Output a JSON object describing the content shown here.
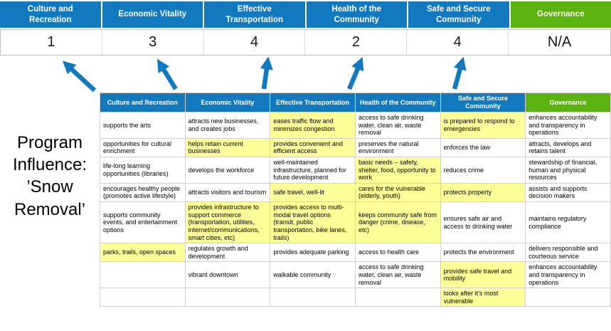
{
  "colors": {
    "blue": "#1379bf",
    "green": "#5cb20e",
    "highlight": "#ffff99",
    "score_text": "#161616"
  },
  "program_influence_label": "Program Influence: ’Snow Removal’",
  "pillars": [
    {
      "label": "Culture and Recreation",
      "score": "1",
      "color": "blue"
    },
    {
      "label": "Economic Vitality",
      "score": "3",
      "color": "blue"
    },
    {
      "label": "Effective Transportation",
      "score": "4",
      "color": "blue"
    },
    {
      "label": "Health of the Community",
      "score": "2",
      "color": "blue"
    },
    {
      "label": "Safe and Secure Community",
      "score": "4",
      "color": "blue"
    },
    {
      "label": "Governance",
      "score": "N/A",
      "color": "green"
    }
  ],
  "table": {
    "headers": [
      {
        "label": "Culture and Recreation",
        "color": "blue"
      },
      {
        "label": "Economic Vitality",
        "color": "blue"
      },
      {
        "label": "Effective Transportation",
        "color": "blue"
      },
      {
        "label": "Health of the Community",
        "color": "blue"
      },
      {
        "label": "Safe and Secure Community",
        "color": "blue"
      },
      {
        "label": "Governance",
        "color": "green"
      }
    ],
    "rows": [
      [
        {
          "text": "supports the arts",
          "hl": false
        },
        {
          "text": "attracts new businesses, and creates jobs",
          "hl": false
        },
        {
          "text": "eases traffic flow and minimizes congestion",
          "hl": true
        },
        {
          "text": "access to safe drinking water, clean air, waste removal",
          "hl": false
        },
        {
          "text": "is prepared to respond to emergencies",
          "hl": true
        },
        {
          "text": "enhances accountability and transparency in operations",
          "hl": false
        }
      ],
      [
        {
          "text": "opportunities for cultural enrichment",
          "hl": false
        },
        {
          "text": "helps retain current businesses",
          "hl": true
        },
        {
          "text": "provides convenient and efficient access",
          "hl": true
        },
        {
          "text": "preserves the natural environment",
          "hl": false
        },
        {
          "text": "enforces the law",
          "hl": false
        },
        {
          "text": "attracts, develops and retains talent",
          "hl": false
        }
      ],
      [
        {
          "text": "life-long learning opportunities (libraries)",
          "hl": false
        },
        {
          "text": "develops the workforce",
          "hl": false
        },
        {
          "text": "well-maintained infrastructure, planned for future development",
          "hl": false
        },
        {
          "text": "basic needs – safety, shelter, food, opportunity to work",
          "hl": true
        },
        {
          "text": "reduces crime",
          "hl": false
        },
        {
          "text": "stewardship of financial, human and physical resources",
          "hl": false
        }
      ],
      [
        {
          "text": "encourages healthy people (promotes active lifestyle)",
          "hl": false
        },
        {
          "text": "attracts visitors and tourism",
          "hl": false
        },
        {
          "text": "safe travel, well-lit",
          "hl": true
        },
        {
          "text": "cares for the vulnerable (elderly, youth)",
          "hl": true
        },
        {
          "text": "protects property",
          "hl": true
        },
        {
          "text": "assists and supports decision makers",
          "hl": false
        }
      ],
      [
        {
          "text": "supports community events, and entertainment options",
          "hl": false
        },
        {
          "text": "provides infrastructure to support commerce (transportation, utilities, internet/communications, smart cities, etc)",
          "hl": true
        },
        {
          "text": "provides access to multi-modal travel options (transit, public transportation, bike lanes, trails)",
          "hl": true
        },
        {
          "text": "keeps community safe from danger (crime, disease, etc)",
          "hl": true
        },
        {
          "text": "ensures safe air and access to drinking water",
          "hl": false
        },
        {
          "text": "maintains regulatory compliance",
          "hl": false
        }
      ],
      [
        {
          "text": "parks, trails, open spaces",
          "hl": true
        },
        {
          "text": "regulates growth and development",
          "hl": false
        },
        {
          "text": "provides adequate parking",
          "hl": false
        },
        {
          "text": "access to health care",
          "hl": false
        },
        {
          "text": "protects the environment",
          "hl": false
        },
        {
          "text": "delivers responsible and courteous service",
          "hl": false
        }
      ],
      [
        {
          "text": "",
          "hl": false
        },
        {
          "text": "vibrant downtown",
          "hl": false
        },
        {
          "text": "walkable community",
          "hl": false
        },
        {
          "text": "access to safe drinking water, clean air, waste removal",
          "hl": false
        },
        {
          "text": "provides safe travel and mobility",
          "hl": true
        },
        {
          "text": "enhances accountability and transparency in operations",
          "hl": false
        }
      ],
      [
        {
          "text": "",
          "hl": false
        },
        {
          "text": "",
          "hl": false
        },
        {
          "text": "",
          "hl": false
        },
        {
          "text": "",
          "hl": false
        },
        {
          "text": "looks after it's most vulnerable",
          "hl": true
        },
        {
          "text": "",
          "hl": false
        }
      ]
    ]
  }
}
